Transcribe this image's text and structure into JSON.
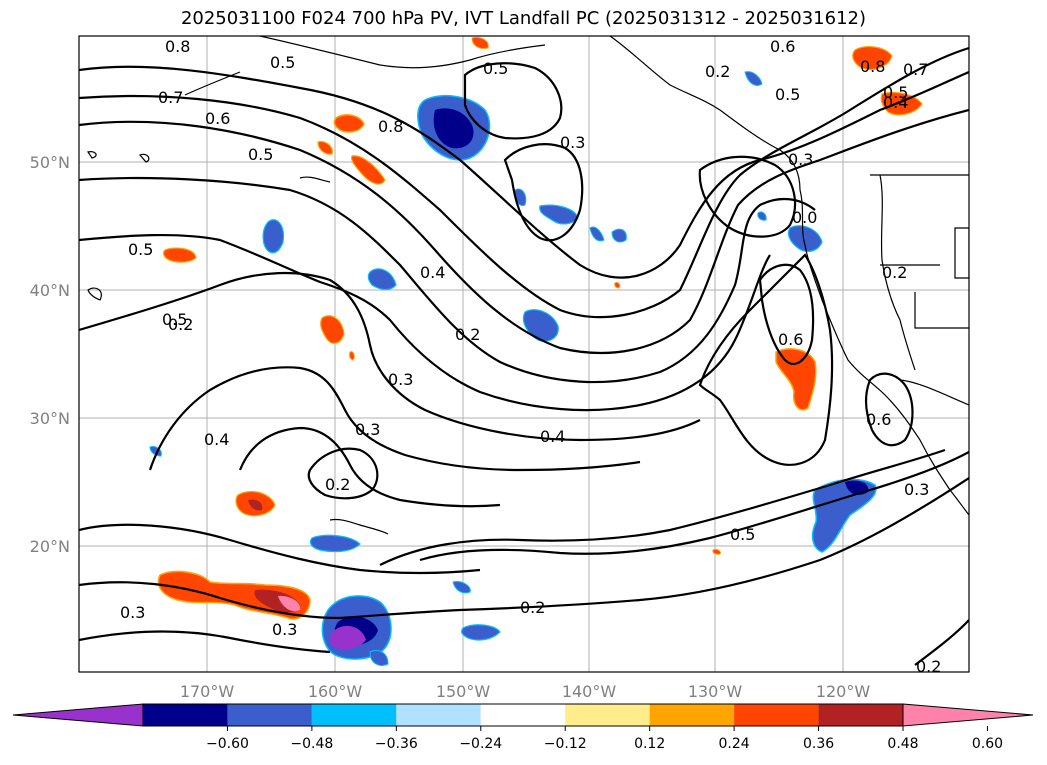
{
  "title": "2025031100 F024 700 hPa PV, IVT Landfall PC (2025031312 - 2025031612)",
  "lon_labels": [
    "170°W",
    "160°W",
    "150°W",
    "140°W",
    "130°W",
    "120°W"
  ],
  "lat_labels": [
    "50°N",
    "40°N",
    "30°N",
    "20°N"
  ],
  "colorbar": {
    "colors": [
      "#9932cc",
      "#00008b",
      "#3a5fcd",
      "#00bfff",
      "#b0e2ff",
      "#ffffff",
      "#ffec8b",
      "#ffa500",
      "#ff4500",
      "#b22222",
      "#ff82ab"
    ],
    "ticks": [
      "−0.60",
      "−0.48",
      "−0.36",
      "−0.24",
      "−0.12",
      "0.12",
      "0.24",
      "0.36",
      "0.48",
      "0.60"
    ]
  },
  "contour_labels": [
    "0.8",
    "0.5",
    "0.7",
    "0.6",
    "0.5",
    "0.8",
    "0.5",
    "0.3",
    "0.2",
    "0.5",
    "0.6",
    "0.5",
    "0.8",
    "0.7",
    "0.5",
    "0.4",
    "0.3",
    "0.0",
    "0.2",
    "0.5",
    "0.2",
    "0.4",
    "0.2",
    "0.6",
    "0.3",
    "0.3",
    "0.4",
    "0.4",
    "0.2",
    "0.6",
    "0.3",
    "0.5",
    "0.3",
    "0.2",
    "0.3",
    "0.2"
  ]
}
